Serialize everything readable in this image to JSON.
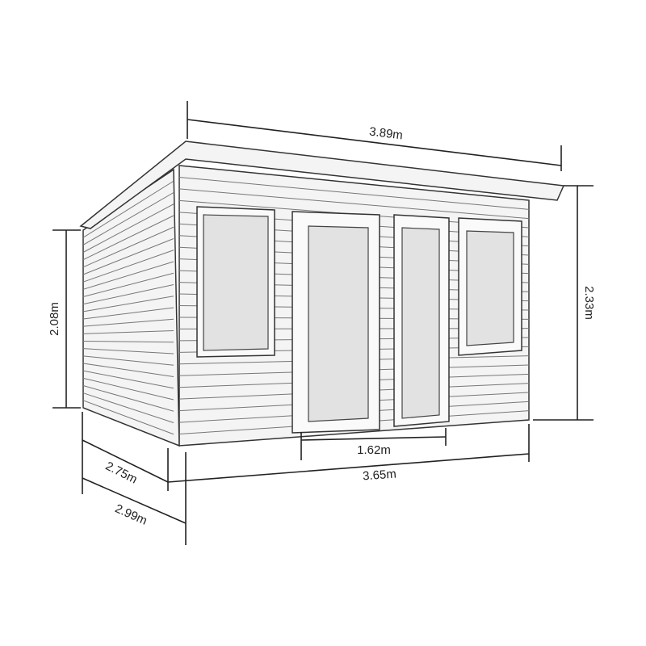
{
  "dimensions": {
    "roof_width": "3.89m",
    "total_height": "2.33m",
    "side_height": "2.08m",
    "door_width": "1.62m",
    "front_width": "3.65m",
    "base_depth": "2.75m",
    "roof_depth": "2.99m"
  }
}
